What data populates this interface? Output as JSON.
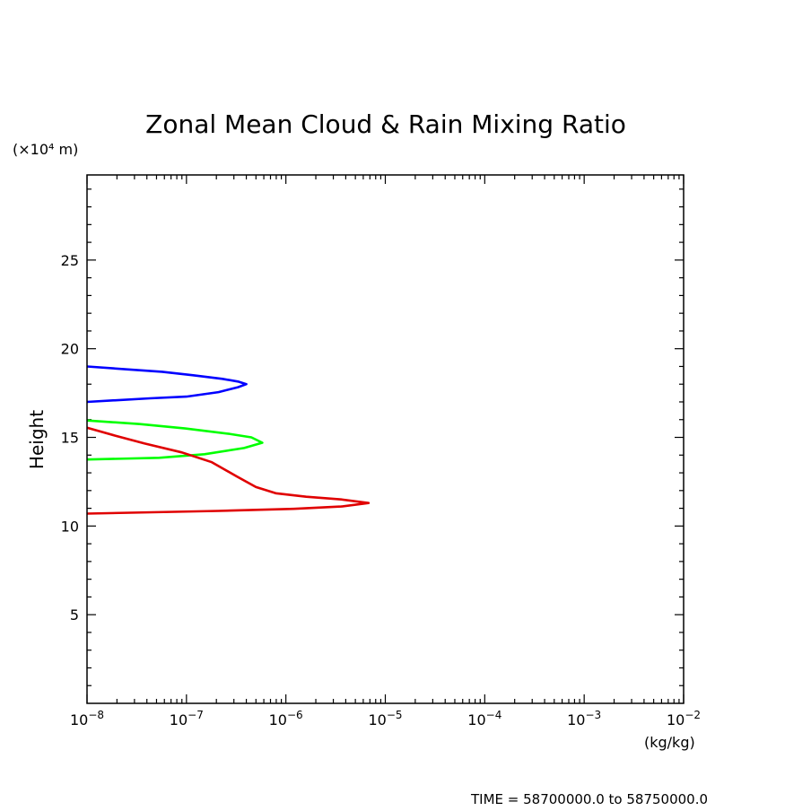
{
  "chart_data": {
    "type": "line",
    "title": "Zonal Mean Cloud & Rain Mixing Ratio",
    "ylabel": "Height",
    "yunit": "(×10⁴ m)",
    "xunit": "(kg/kg)",
    "xscale": "log",
    "xlim": [
      1e-08,
      0.01
    ],
    "ylim": [
      0,
      29.8
    ],
    "yticks": [
      5,
      10,
      15,
      20,
      25
    ],
    "yticklabels": [
      "5",
      "10",
      "15",
      "20",
      "25"
    ],
    "xticks": [
      1e-08,
      1e-07,
      1e-06,
      1e-05,
      0.0001,
      0.001,
      0.01
    ],
    "xtick_mantissa": "10",
    "xtick_exponents": [
      "−8",
      "−7",
      "−6",
      "−5",
      "−4",
      "−3",
      "−2"
    ],
    "grid": false,
    "legend": "none",
    "series": [
      {
        "color": "#0000ff",
        "points": [
          [
            1e-08,
            19.0
          ],
          [
            2.6e-08,
            18.83
          ],
          [
            5.7e-08,
            18.7
          ],
          [
            1.17e-07,
            18.5
          ],
          [
            2.3e-07,
            18.3
          ],
          [
            3.3e-07,
            18.15
          ],
          [
            4e-07,
            18.0
          ],
          [
            3.3e-07,
            17.83
          ],
          [
            2.1e-07,
            17.55
          ],
          [
            1e-07,
            17.3
          ],
          [
            4.3e-08,
            17.2
          ],
          [
            1e-08,
            17.0
          ]
        ]
      },
      {
        "color": "#00ff00",
        "points": [
          [
            1e-08,
            15.95
          ],
          [
            3.4e-08,
            15.75
          ],
          [
            9.7e-08,
            15.5
          ],
          [
            2.7e-07,
            15.2
          ],
          [
            4.5e-07,
            15.0
          ],
          [
            5.8e-07,
            14.7
          ],
          [
            3.8e-07,
            14.4
          ],
          [
            1.52e-07,
            14.05
          ],
          [
            5.3e-08,
            13.85
          ],
          [
            1e-08,
            13.75
          ]
        ]
      },
      {
        "color": "#e00000",
        "points": [
          [
            1e-08,
            15.55
          ],
          [
            1.9e-08,
            15.1
          ],
          [
            3.8e-08,
            14.65
          ],
          [
            9e-08,
            14.15
          ],
          [
            1.8e-07,
            13.6
          ],
          [
            3.2e-07,
            12.8
          ],
          [
            5e-07,
            12.2
          ],
          [
            7.9e-07,
            11.85
          ],
          [
            1.6e-06,
            11.65
          ],
          [
            3.6e-06,
            11.5
          ],
          [
            6.8e-06,
            11.3
          ],
          [
            3.6e-06,
            11.1
          ],
          [
            1.2e-06,
            10.97
          ],
          [
            2.1e-07,
            10.85
          ],
          [
            1e-08,
            10.7
          ]
        ]
      }
    ]
  },
  "footer": {
    "time_range": "TIME = 58700000.0 to 58750000.0"
  }
}
